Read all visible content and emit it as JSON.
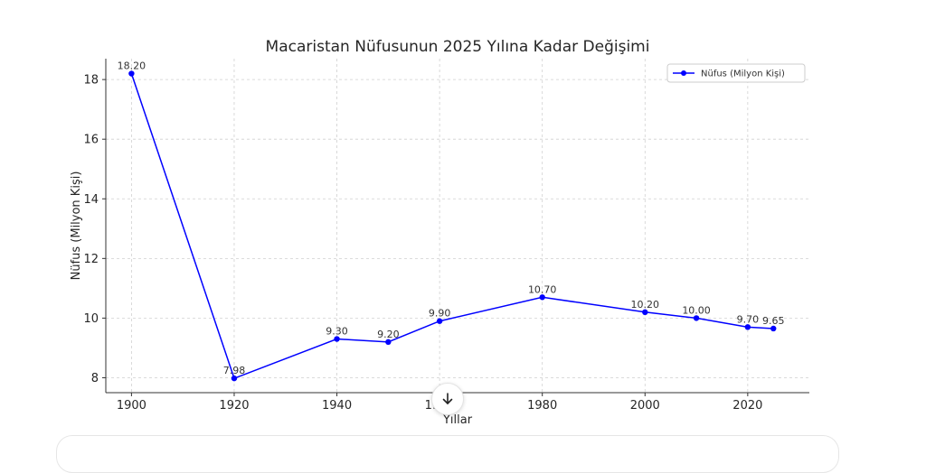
{
  "chart_data": {
    "type": "line",
    "title": "Macaristan Nüfusunun 2025 Yılına Kadar Değişimi",
    "xlabel": "Yıllar",
    "ylabel": "Nüfus (Milyon Kişi)",
    "xlim": [
      1895,
      2032
    ],
    "ylim": [
      7.5,
      18.7
    ],
    "xticks": [
      1900,
      1920,
      1940,
      1960,
      1980,
      2000,
      2020
    ],
    "yticks": [
      8,
      10,
      12,
      14,
      16,
      18
    ],
    "grid": true,
    "legend_position": "top-right",
    "series": [
      {
        "name": "Nüfus (Milyon Kişi)",
        "color": "#0000ff",
        "x": [
          1900,
          1920,
          1940,
          1950,
          1960,
          1980,
          2000,
          2010,
          2020,
          2025
        ],
        "y": [
          18.2,
          7.98,
          9.3,
          9.2,
          9.9,
          10.7,
          10.2,
          10.0,
          9.7,
          9.65
        ],
        "labels": [
          "18.20",
          "7.98",
          "9.30",
          "9.20",
          "9.90",
          "10.70",
          "10.20",
          "10.00",
          "9.70",
          "9.65"
        ]
      }
    ]
  },
  "ui": {
    "scroll_down_icon": "arrow-down-icon"
  }
}
